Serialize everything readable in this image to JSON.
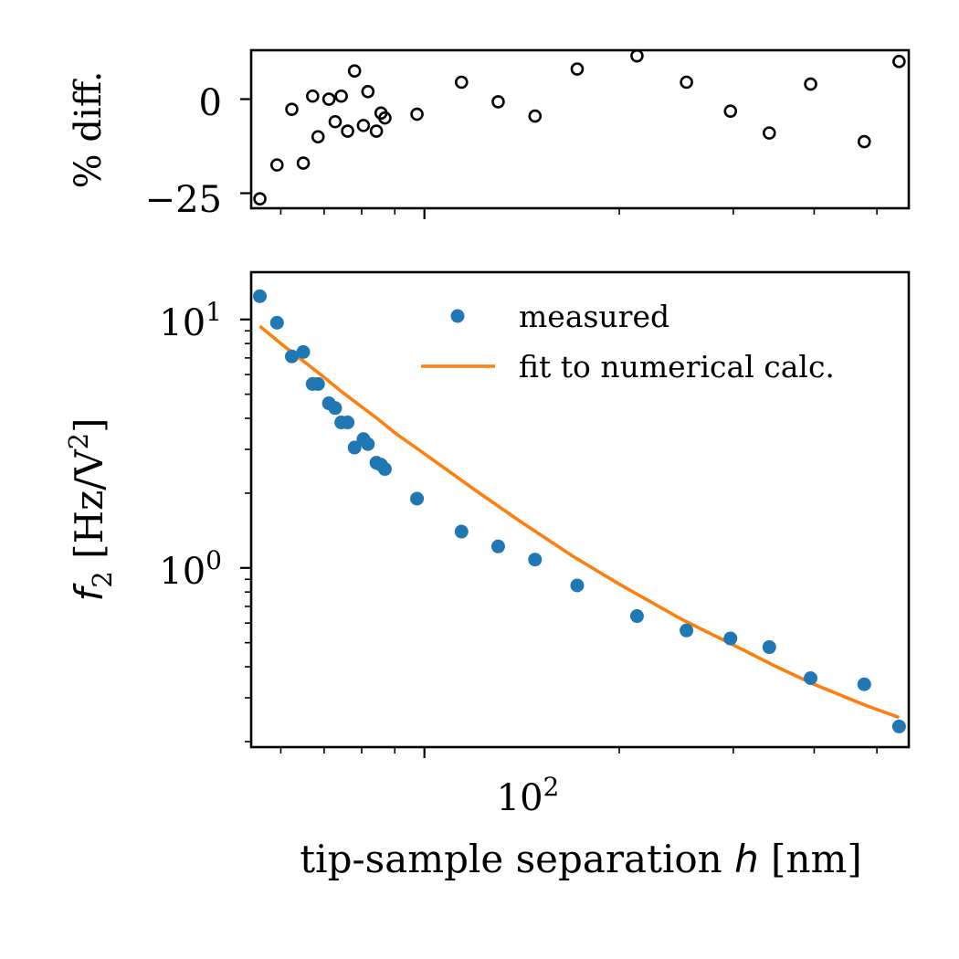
{
  "chart_data": [
    {
      "type": "scatter",
      "title": "",
      "xlabel": "",
      "ylabel": "% diff.",
      "x_scale": "log",
      "xlim": [
        54,
        560
      ],
      "ylim": [
        -29,
        13
      ],
      "yticks": [
        -25,
        0
      ],
      "ytick_labels": [
        "−25",
        "0"
      ],
      "xtick_labels_visible": false,
      "marker": "open-circle",
      "marker_color": "#000000",
      "series": [
        {
          "x": [
            55.7,
            59.2,
            62.4,
            65.0,
            67.2,
            68.5,
            71.2,
            72.8,
            74.4,
            76.1,
            78.0,
            80.5,
            81.8,
            84.3,
            85.7,
            86.9,
            97.4,
            114.1,
            130.0,
            148.2,
            172.2,
            213.0,
            254.0,
            297.0,
            341.0,
            395.0,
            478.0,
            541.0
          ],
          "y": [
            -26.5,
            -17.5,
            -2.7,
            -17.0,
            0.8,
            -10.0,
            0.0,
            -6.0,
            0.8,
            -8.5,
            7.5,
            -7.0,
            2.0,
            -8.5,
            -3.7,
            -5.0,
            -4.0,
            4.5,
            -0.7,
            -4.5,
            8.0,
            11.5,
            4.5,
            -3.2,
            -9.0,
            4.0,
            -11.3,
            10.0
          ]
        }
      ]
    },
    {
      "type": "scatter",
      "title": "",
      "xlabel": "tip-sample separation h [nm]",
      "ylabel": "f2 [Hz/V2]",
      "x_scale": "log",
      "y_scale": "log",
      "xlim": [
        54,
        560
      ],
      "ylim": [
        0.19,
        15.5
      ],
      "xtick_major": [
        100
      ],
      "ytick_major": [
        1,
        10
      ],
      "legend_position": "top-right",
      "series": [
        {
          "name": "measured",
          "kind": "points",
          "color": "#1f77b4",
          "x": [
            55.7,
            59.2,
            62.4,
            65.0,
            67.2,
            68.5,
            71.2,
            72.8,
            74.4,
            76.1,
            78.0,
            80.5,
            81.8,
            84.3,
            85.7,
            86.9,
            97.4,
            114.1,
            130.0,
            148.2,
            172.2,
            213.0,
            254.0,
            297.0,
            341.0,
            395.0,
            478.0,
            541.0
          ],
          "y": [
            12.4,
            9.7,
            7.1,
            7.4,
            5.5,
            5.5,
            4.6,
            4.4,
            3.85,
            3.85,
            3.05,
            3.3,
            3.15,
            2.65,
            2.6,
            2.5,
            1.9,
            1.4,
            1.22,
            1.08,
            0.85,
            0.64,
            0.56,
            0.52,
            0.48,
            0.36,
            0.34,
            0.23
          ]
        },
        {
          "name": "fit to numerical calc.",
          "kind": "line",
          "color": "#ff7f0e",
          "x": [
            55.7,
            60,
            65,
            70,
            75,
            80,
            85,
            90,
            100,
            120,
            140,
            170,
            200,
            250,
            300,
            350,
            400,
            480,
            541
          ],
          "y": [
            9.4,
            8.0,
            6.8,
            5.85,
            5.05,
            4.45,
            3.95,
            3.5,
            2.88,
            2.05,
            1.55,
            1.11,
            0.86,
            0.62,
            0.49,
            0.4,
            0.34,
            0.28,
            0.25
          ]
        }
      ]
    }
  ],
  "labels": {
    "top_ylabel": "% diff.",
    "bottom_ylabel_f": "f",
    "bottom_ylabel_sub": "2",
    "bottom_ylabel_unit": " [Hz/V",
    "bottom_ylabel_sup": "2",
    "bottom_ylabel_close": "]",
    "xlabel_prefix": "tip-sample separation ",
    "xlabel_var": "h",
    "xlabel_suffix": " [nm]",
    "xtick_base": "10",
    "xtick_exp": "2",
    "ytick_base_top": "10",
    "ytick_exp_top": "1",
    "ytick_base_bottom": "10",
    "ytick_exp_bottom": "0"
  }
}
